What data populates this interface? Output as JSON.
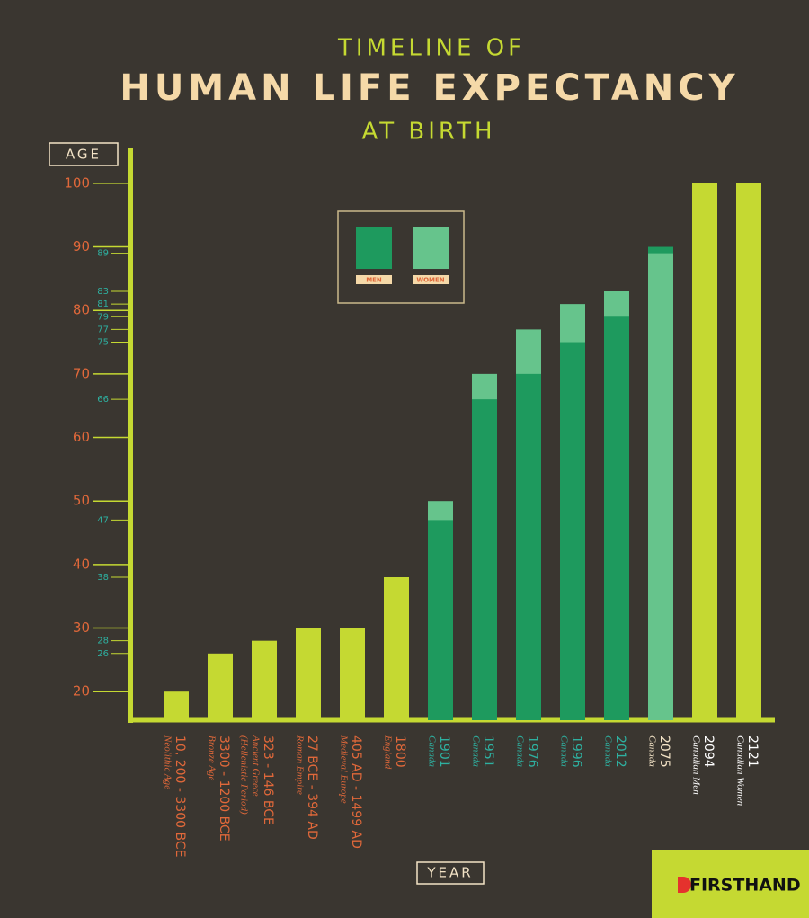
{
  "chart_data": {
    "type": "bar",
    "title_top": "TIMELINE OF",
    "title": "HUMAN LIFE EXPECTANCY",
    "subtitle": "AT BIRTH",
    "y_label": "AGE",
    "x_label": "YEAR",
    "brand": "FIRSTHAND",
    "categories": [
      "10, 200 - 3300 BCE",
      "3300 - 1200 BCE",
      "323 - 146 BCE",
      "27 BCE - 394 AD",
      "405 AD - 1499 AD",
      "1800",
      "1901",
      "1951",
      "1976",
      "1996",
      "2012",
      "2075",
      "2094",
      "2121"
    ],
    "sublabels": [
      [
        "Neolithic Age"
      ],
      [
        "Bronze Age"
      ],
      [
        "Ancient Greece",
        "(Hellenistic Period)"
      ],
      [
        "Roman Empire"
      ],
      [
        "Medieval Europe"
      ],
      [
        "England"
      ],
      [
        "Canada"
      ],
      [
        "Canada"
      ],
      [
        "Canada"
      ],
      [
        "Canada"
      ],
      [
        "Canada"
      ],
      [
        "Canada"
      ],
      [
        "Canadian Men"
      ],
      [
        "Canadian Women"
      ]
    ],
    "label_colors": [
      "#e0683a",
      "#e0683a",
      "#e0683a",
      "#e0683a",
      "#e0683a",
      "#e0683a",
      "#2eb0a0",
      "#2eb0a0",
      "#2eb0a0",
      "#2eb0a0",
      "#2eb0a0",
      "#f3e3c6",
      "#ffffff",
      "#ffffff"
    ],
    "values": [
      20,
      26,
      28,
      30,
      30,
      38,
      null,
      null,
      null,
      null,
      null,
      null,
      100,
      100
    ],
    "color": "#c5d932",
    "series": [
      {
        "name": "MEN",
        "color": "#1e9a5e",
        "values": [
          null,
          null,
          null,
          null,
          null,
          null,
          47,
          66,
          70,
          75,
          79,
          90,
          null,
          null
        ]
      },
      {
        "name": "WOMEN",
        "color": "#66c48c",
        "values": [
          null,
          null,
          null,
          null,
          null,
          null,
          50,
          70,
          77,
          81,
          83,
          89,
          null,
          null
        ]
      }
    ],
    "ylim": [
      15.5,
      105.5
    ],
    "yticks": [
      20,
      30,
      40,
      50,
      60,
      70,
      80,
      90,
      100
    ],
    "yticks_minor": [
      26,
      28,
      38,
      47,
      66,
      75,
      77,
      79,
      81,
      83,
      89
    ]
  }
}
